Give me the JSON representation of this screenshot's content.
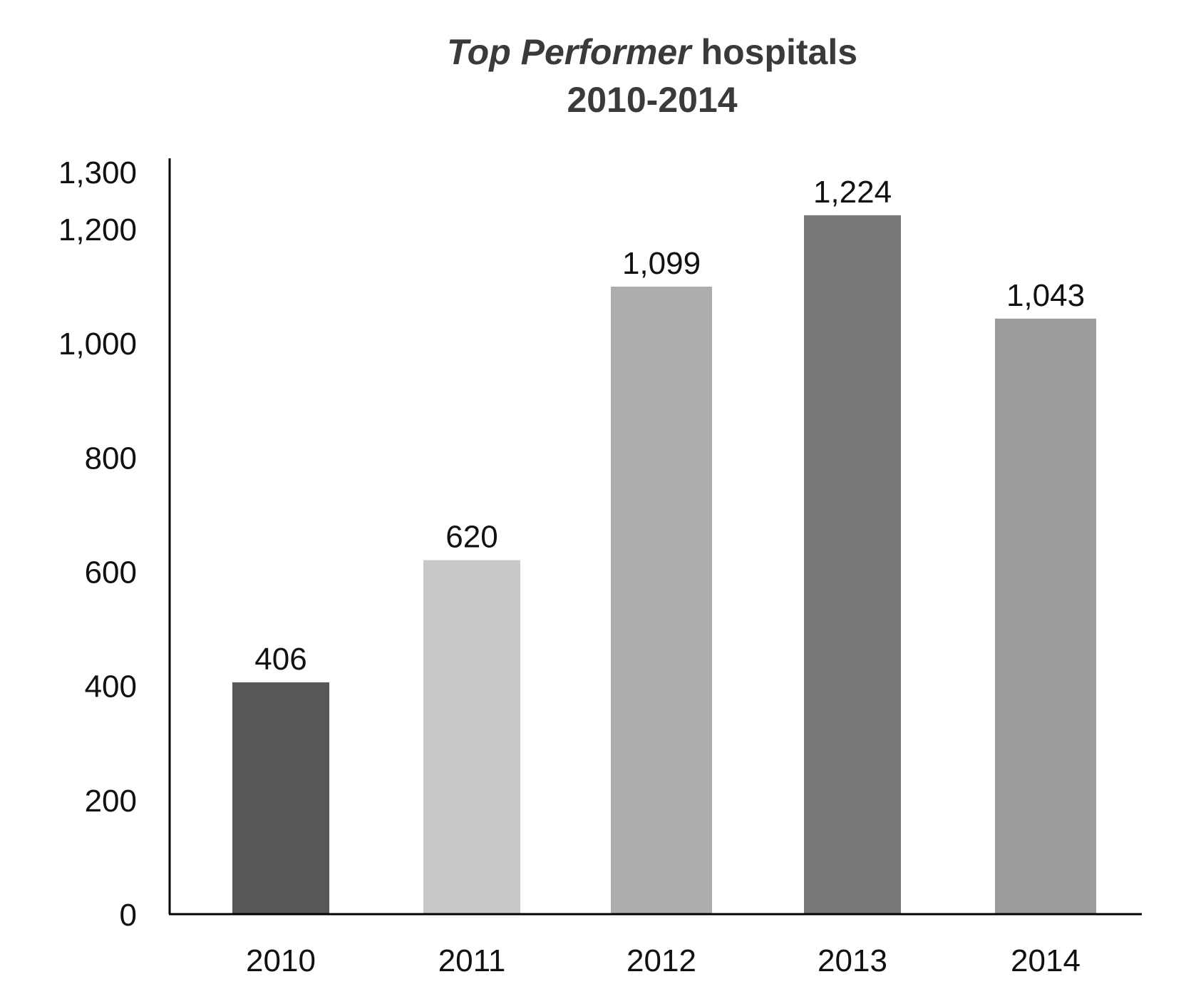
{
  "chart_data": {
    "type": "bar",
    "title_emphasis": "Top Performer",
    "title_rest": " hospitals",
    "subtitle": "2010-2014",
    "categories": [
      "2010",
      "2011",
      "2012",
      "2013",
      "2014"
    ],
    "values": [
      406,
      620,
      1099,
      1224,
      1043
    ],
    "value_labels": [
      "406",
      "620",
      "1,099",
      "1,224",
      "1,043"
    ],
    "bar_colors": [
      "#575757",
      "#c8c8c8",
      "#adadad",
      "#777777",
      "#9c9c9c"
    ],
    "ylim": [
      0,
      1300
    ],
    "yticks": [
      0,
      200,
      400,
      600,
      800,
      1000,
      1200,
      1300
    ],
    "ytick_labels": [
      "0",
      "200",
      "400",
      "600",
      "800",
      "1,000",
      "1,200",
      "1,300"
    ],
    "xlabel": "",
    "ylabel": "",
    "grid": false,
    "legend": "none"
  }
}
